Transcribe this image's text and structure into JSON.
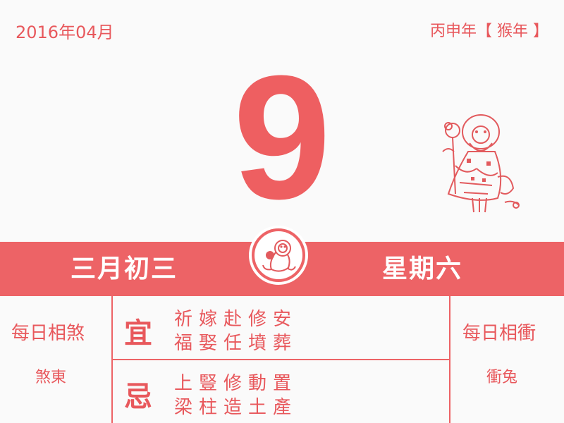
{
  "header": {
    "date": "2016年04月",
    "zodiac_year": "丙申年【 猴年 】"
  },
  "day_number": "9",
  "decorations": {
    "figure_icon": "longevity-god-papercut",
    "emblem_icon": "monkey-zodiac"
  },
  "band": {
    "lunar_date": "三月初三",
    "weekday": "星期六"
  },
  "left_panel": {
    "title": "每日相煞",
    "value": "煞東"
  },
  "right_panel": {
    "title": "每日相衝",
    "value": "衝兔"
  },
  "yi": {
    "label": "宜",
    "line1": "祈嫁赴修安",
    "line2": "福娶任墳葬"
  },
  "ji": {
    "label": "忌",
    "line1": "上豎修動置",
    "line2": "梁柱造土產"
  },
  "colors": {
    "accent": "#ed6366",
    "text": "#e8585c",
    "background": "#fafafa"
  }
}
